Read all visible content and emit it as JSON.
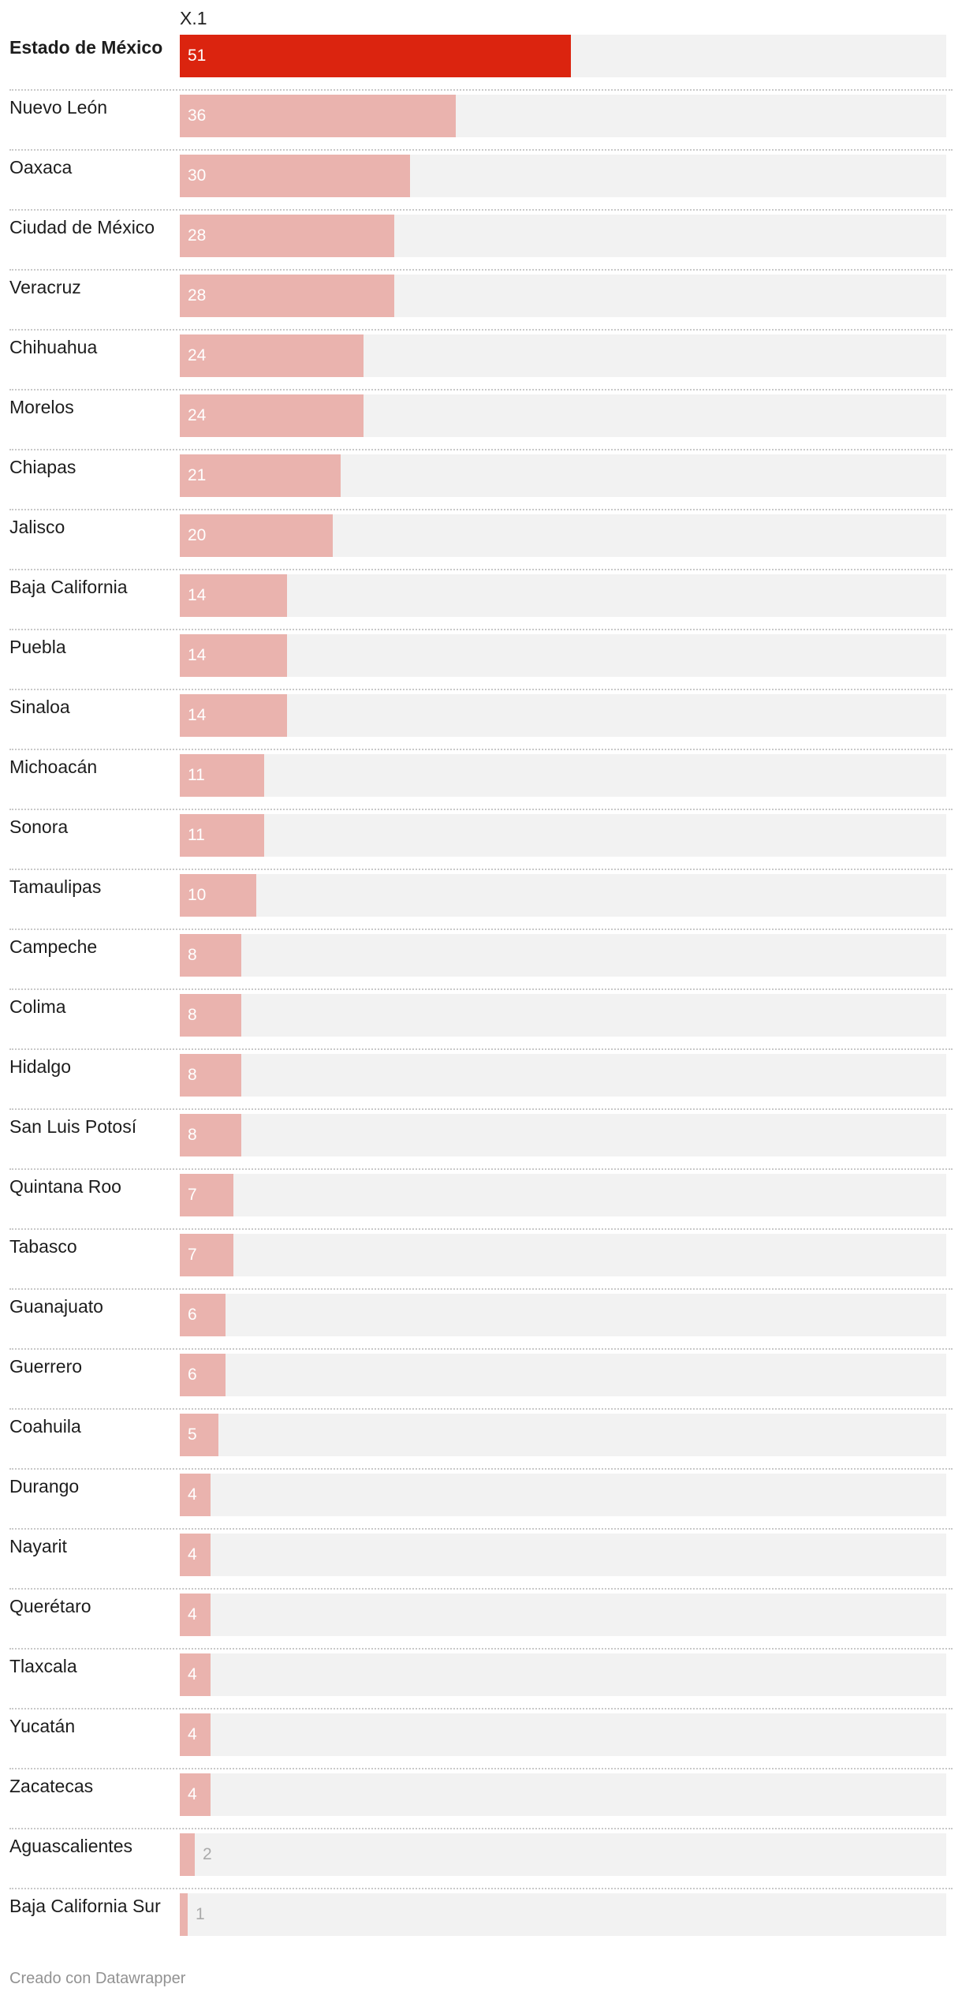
{
  "chart_data": {
    "type": "bar",
    "orientation": "horizontal",
    "column_header": "X.1",
    "categories": [
      "Estado de México",
      "Nuevo León",
      "Oaxaca",
      "Ciudad de México",
      "Veracruz",
      "Chihuahua",
      "Morelos",
      "Chiapas",
      "Jalisco",
      "Baja California",
      "Puebla",
      "Sinaloa",
      "Michoacán",
      "Sonora",
      "Tamaulipas",
      "Campeche",
      "Colima",
      "Hidalgo",
      "San Luis Potosí",
      "Quintana Roo",
      "Tabasco",
      "Guanajuato",
      "Guerrero",
      "Coahuila",
      "Durango",
      "Nayarit",
      "Querétaro",
      "Tlaxcala",
      "Yucatán",
      "Zacatecas",
      "Aguascalientes",
      "Baja California Sur"
    ],
    "values": [
      51,
      36,
      30,
      28,
      28,
      24,
      24,
      21,
      20,
      14,
      14,
      14,
      11,
      11,
      10,
      8,
      8,
      8,
      8,
      7,
      7,
      6,
      6,
      5,
      4,
      4,
      4,
      4,
      4,
      4,
      2,
      1
    ],
    "xlim": [
      0,
      100
    ],
    "highlight_index": 0,
    "colors": {
      "highlight": "#db240f",
      "bar": "#eab3ae",
      "track": "#f2f2f2",
      "label_inside": "#ffffff",
      "label_outside": "#aaaaaa"
    },
    "grid": false,
    "legend": "none"
  },
  "footer": {
    "credit": "Creado con Datawrapper"
  }
}
